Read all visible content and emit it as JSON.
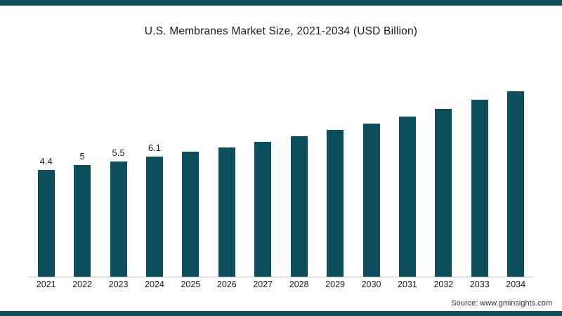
{
  "frame": {
    "accent_color": "#0d4e5d"
  },
  "chart_data": {
    "type": "bar",
    "title": "U.S. Membranes Market Size, 2021-2034 (USD Billion)",
    "categories": [
      "2021",
      "2022",
      "2023",
      "2024",
      "2025",
      "2026",
      "2027",
      "2028",
      "2029",
      "2030",
      "2031",
      "2032",
      "2033",
      "2034"
    ],
    "values": [
      4.4,
      5,
      5.5,
      6.1,
      6.7,
      7.3,
      8.0,
      8.7,
      9.5,
      10.3,
      11.2,
      12.2,
      13.3,
      14.5
    ],
    "data_labels": [
      "4.4",
      "5",
      "5.5",
      "6.1",
      "",
      "",
      "",
      "",
      "",
      "",
      "",
      "",
      "",
      ""
    ],
    "bar_color": "#0d4e5d",
    "axis_line_color": "#b8bcbe",
    "xlabel": "",
    "ylabel": "",
    "ylim": [
      0,
      16
    ],
    "grid": false,
    "legend": "none",
    "notes": "Only the first four bars carry visible data labels; remaining values estimated from bar heights."
  },
  "source": {
    "label": "Source: www.gminsights.com"
  }
}
